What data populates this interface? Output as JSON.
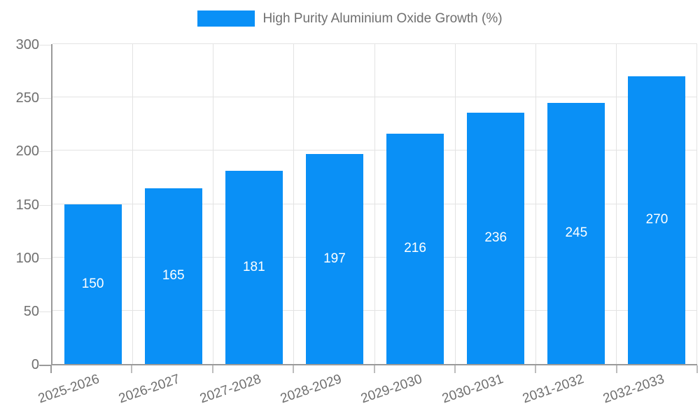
{
  "legend": {
    "label": "High Purity Aluminium Oxide Growth (%)"
  },
  "chart_data": {
    "type": "bar",
    "title": "",
    "xlabel": "",
    "ylabel": "",
    "categories": [
      "2025-2026",
      "2026-2027",
      "2027-2028",
      "2028-2029",
      "2029-2030",
      "2030-2031",
      "2031-2032",
      "2032-2033"
    ],
    "series": [
      {
        "name": "High Purity Aluminium Oxide Growth (%)",
        "values": [
          150,
          165,
          181,
          197,
          216,
          236,
          245,
          270
        ]
      }
    ],
    "ylim": [
      0,
      300
    ],
    "yticks": [
      0,
      50,
      100,
      150,
      200,
      250,
      300
    ],
    "grid": true,
    "legend_position": "top-center",
    "value_labels": "inside-middle",
    "colors": {
      "bar": "#0a90f6",
      "value_label": "#ffffff",
      "axis": "#9a9a9a",
      "gridline": "#e3e3e3",
      "tick": "#bdbdbd",
      "text": "#6f6f6f"
    }
  }
}
